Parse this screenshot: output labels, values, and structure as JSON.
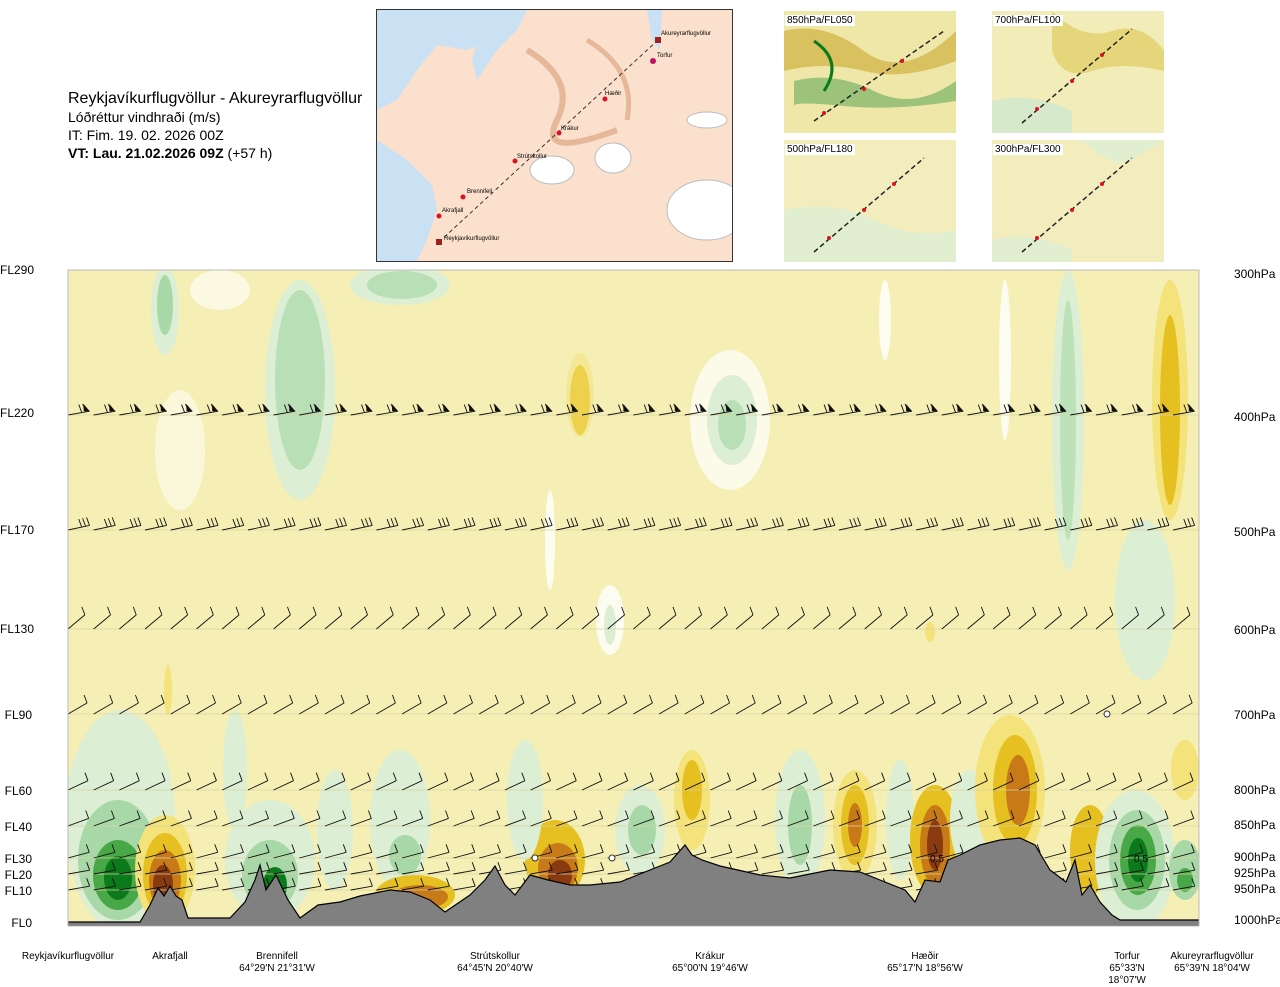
{
  "header": {
    "route": "Reykjavíkurflugvöllur - Akureyrarflugvöllur",
    "variable": "Lóðréttur vindhraði (m/s)",
    "issue_time": "IT: Fim. 19. 02. 2026 00Z",
    "valid_prefix": "VT: Lau. 21.02.2026 09Z",
    "valid_suffix": "(+57 h)"
  },
  "map": {
    "places": [
      "Akureyrarflugvöllur",
      "Torfur",
      "Hæðir",
      "Krákur",
      "Strútskollur",
      "Brennifell",
      "Akrafjall",
      "Reykjavíkurflugvöllur"
    ]
  },
  "mini_maps": [
    {
      "label": "850hPa/FL050"
    },
    {
      "label": "700hPa/FL100"
    },
    {
      "label": "500hPa/FL180"
    },
    {
      "label": "300hPa/FL300"
    }
  ],
  "chart_data": {
    "type": "heatmap",
    "title": "Lóðréttur vindhraði (m/s)",
    "levels": [
      {
        "fl": "FL290",
        "hpa": "300hPa"
      },
      {
        "fl": "FL220",
        "hpa": "400hPa"
      },
      {
        "fl": "FL170",
        "hpa": "500hPa"
      },
      {
        "fl": "FL130",
        "hpa": "600hPa"
      },
      {
        "fl": "FL90",
        "hpa": "700hPa"
      },
      {
        "fl": "FL60",
        "hpa": "800hPa"
      },
      {
        "fl": "FL40",
        "hpa": "850hPa"
      },
      {
        "fl": "FL30",
        "hpa": "900hPa"
      },
      {
        "fl": "FL20",
        "hpa": "925hPa"
      },
      {
        "fl": "FL10",
        "hpa": "950hPa"
      },
      {
        "fl": "FL0",
        "hpa": "1000hPa"
      }
    ],
    "locations": [
      {
        "name": "Reykjavíkurflugvöllur",
        "coord": ""
      },
      {
        "name": "Akrafjall",
        "coord": ""
      },
      {
        "name": "Brennifell",
        "coord": "64°29'N 21°31'W"
      },
      {
        "name": "Strútskollur",
        "coord": "64°45'N 20°40'W"
      },
      {
        "name": "Krákur",
        "coord": "65°00'N 19°46'W"
      },
      {
        "name": "Hæðir",
        "coord": "65°17'N 18°56'W"
      },
      {
        "name": "Torfur",
        "coord": "65°33'N 18°07'W"
      },
      {
        "name": "Akureyrarflugvöllur",
        "coord": "65°39'N 18°04'W"
      }
    ],
    "annotations": [
      "0.5",
      "0.5"
    ],
    "colors": {
      "background": "#f5efb5",
      "weak_down": "#dcefd4",
      "moderate_down": "#a8d8a8",
      "strong_down": "#48a848",
      "extreme_down": "#0a7a1a",
      "weak_up": "#f4e27a",
      "moderate_up": "#e6c020",
      "strong_up": "#c87a18",
      "extreme_up": "#8a3a10",
      "terrain": "#808080"
    }
  }
}
